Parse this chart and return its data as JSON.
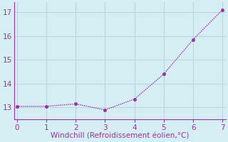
{
  "x": [
    0,
    1,
    2,
    3,
    4,
    5,
    6,
    7
  ],
  "y": [
    13.05,
    13.05,
    13.15,
    12.9,
    13.35,
    14.4,
    15.85,
    17.1
  ],
  "line_color": "#993399",
  "marker_color": "#993399",
  "bg_color": "#d4eef4",
  "grid_color": "#b8d8e0",
  "spine_color": "#993399",
  "xlabel": "Windchill (Refroidissement éolien,°C)",
  "xlabel_color": "#993399",
  "xlim": [
    -0.1,
    7.1
  ],
  "ylim": [
    12.5,
    17.4
  ],
  "xticks": [
    0,
    1,
    2,
    3,
    4,
    5,
    6,
    7
  ],
  "yticks": [
    13,
    14,
    15,
    16,
    17
  ],
  "tick_labelcolor": "#993399",
  "xlabel_fontsize": 7.5,
  "tick_fontsize": 7.5,
  "lw": 1.0,
  "markersize": 3.0
}
